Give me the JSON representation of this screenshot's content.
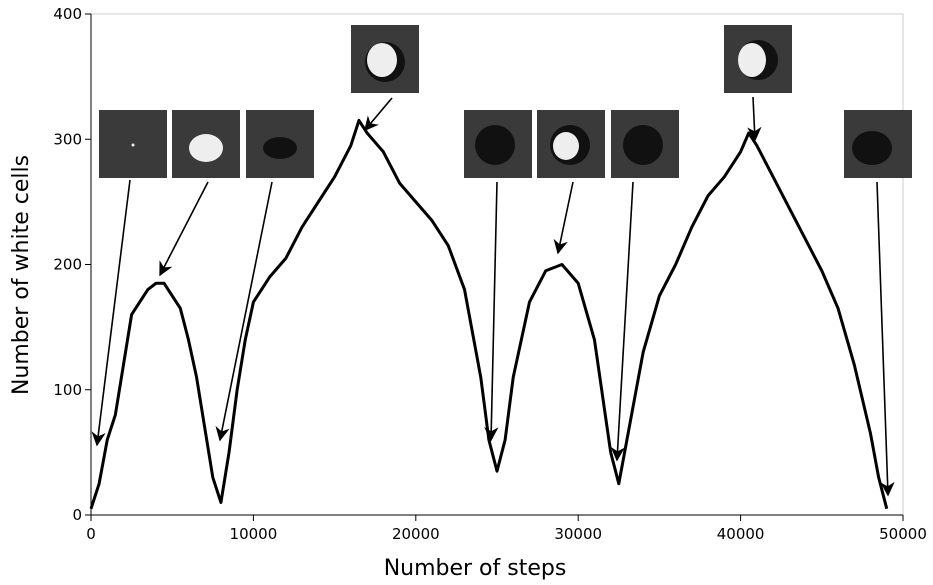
{
  "chart_data": {
    "type": "line",
    "xlabel": "Number of steps",
    "ylabel": "Number of white cells",
    "xlim": [
      0,
      50000
    ],
    "ylim": [
      0,
      400
    ],
    "xticks": [
      0,
      10000,
      20000,
      30000,
      40000,
      50000
    ],
    "yticks": [
      0,
      100,
      200,
      300,
      400
    ],
    "series": [
      {
        "color": "#000000",
        "x": [
          0,
          500,
          1000,
          1500,
          2000,
          2500,
          3000,
          3500,
          4000,
          4500,
          5000,
          5500,
          6000,
          6500,
          7000,
          7500,
          8000,
          8500,
          9000,
          9500,
          10000,
          11000,
          12000,
          13000,
          14000,
          15000,
          16000,
          16500,
          17000,
          18000,
          19000,
          20000,
          21000,
          22000,
          23000,
          24000,
          24500,
          25000,
          25500,
          26000,
          27000,
          28000,
          29000,
          30000,
          31000,
          32000,
          32500,
          33000,
          34000,
          35000,
          36000,
          37000,
          38000,
          39000,
          40000,
          40500,
          41000,
          42000,
          43000,
          44000,
          45000,
          46000,
          47000,
          48000,
          48500,
          49000
        ],
        "values": [
          5,
          25,
          60,
          80,
          120,
          160,
          170,
          180,
          185,
          185,
          175,
          165,
          140,
          110,
          70,
          30,
          10,
          50,
          100,
          140,
          170,
          190,
          205,
          230,
          250,
          270,
          295,
          315,
          305,
          290,
          265,
          250,
          235,
          215,
          180,
          110,
          60,
          35,
          60,
          110,
          170,
          195,
          200,
          185,
          140,
          50,
          25,
          60,
          130,
          175,
          200,
          230,
          255,
          270,
          290,
          305,
          295,
          270,
          245,
          220,
          195,
          165,
          120,
          65,
          30,
          5
        ]
      }
    ]
  }
}
